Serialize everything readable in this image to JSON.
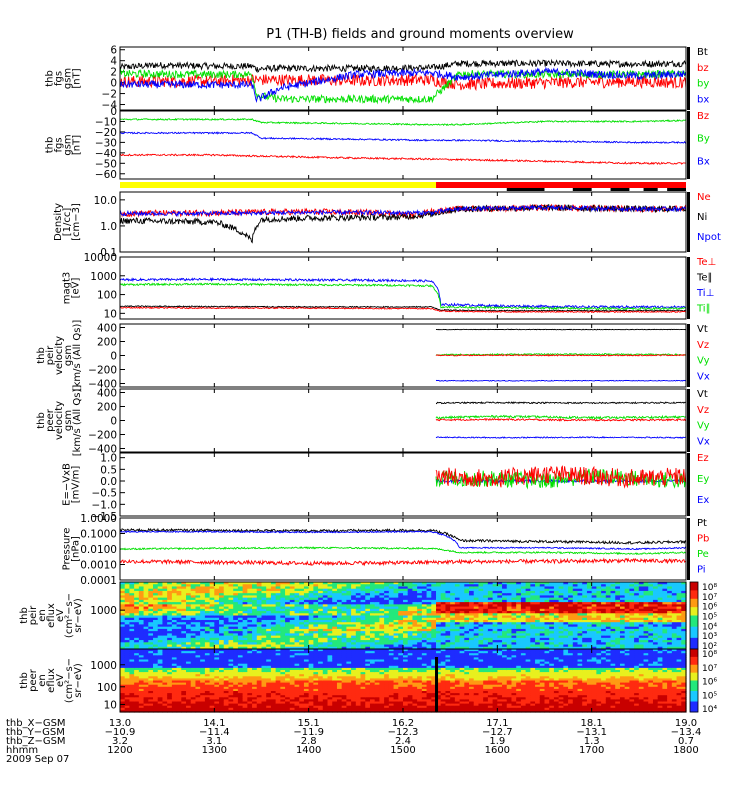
{
  "title": "P1 (TH-B) fields and ground moments overview",
  "colors": {
    "black": "#000000",
    "red": "#ff0000",
    "green": "#00e000",
    "blue": "#0000ff",
    "yellow": "#ffff00"
  },
  "chart_data": [
    {
      "type": "line",
      "id": "fgs_gsm_mag",
      "ylabel": [
        "thb",
        "fgs",
        "gsm",
        "[nT]"
      ],
      "yticks": [
        "6",
        "4",
        "2",
        "0",
        "−2",
        "−4"
      ],
      "ylim": [
        -5,
        6.5
      ],
      "legend": [
        {
          "label": "Bt",
          "color": "black"
        },
        {
          "label": "bz",
          "color": "red"
        },
        {
          "label": "by",
          "color": "green"
        },
        {
          "label": "bx",
          "color": "blue"
        }
      ],
      "series": [
        {
          "name": "Bt",
          "color": "black",
          "x": [
            13.0,
            13.4,
            14.0,
            14.4,
            14.45,
            14.6,
            15.5,
            16.3,
            16.6,
            17.5,
            18.5,
            19.0
          ],
          "y": [
            2.8,
            3.2,
            3.0,
            3.0,
            2.5,
            2.6,
            2.6,
            2.7,
            3.5,
            3.5,
            3.4,
            3.5
          ],
          "noise": 0.6
        },
        {
          "name": "bz",
          "color": "red",
          "x": [
            13.0,
            14.0,
            14.4,
            14.6,
            15.5,
            16.3,
            16.6,
            17.5,
            18.5,
            19.0
          ],
          "y": [
            0.2,
            0.3,
            0.5,
            0.5,
            0.4,
            0.5,
            -0.3,
            0.0,
            0.2,
            0.0
          ],
          "noise": 1.1
        },
        {
          "name": "by",
          "color": "green",
          "x": [
            13.0,
            14.0,
            14.4,
            14.45,
            14.7,
            15.5,
            16.3,
            16.6,
            17.5,
            18.5,
            19.0
          ],
          "y": [
            1.6,
            1.5,
            1.5,
            -2.3,
            -3.0,
            -3.0,
            -3.0,
            1.6,
            1.5,
            1.5,
            1.6
          ],
          "noise": 0.7
        },
        {
          "name": "bx",
          "color": "blue",
          "x": [
            13.0,
            14.0,
            14.4,
            14.45,
            14.7,
            15.5,
            16.3,
            16.6,
            17.5,
            18.5,
            19.0
          ],
          "y": [
            -0.3,
            -0.4,
            -0.4,
            -3.2,
            -1.0,
            1.5,
            1.8,
            1.0,
            2.0,
            1.2,
            1.6
          ],
          "noise": 0.7
        }
      ]
    },
    {
      "type": "line",
      "id": "fgs_gsm_vec",
      "ylabel": [
        "thb",
        "fgs",
        "gsm",
        "[nT]"
      ],
      "yticks": [
        "0",
        "−10",
        "−20",
        "−30",
        "−40",
        "−50",
        "−60"
      ],
      "ylim": [
        -65,
        0
      ],
      "legend": [
        {
          "label": "Bz",
          "color": "red"
        },
        {
          "label": "By",
          "color": "green"
        },
        {
          "label": "Bx",
          "color": "blue"
        }
      ],
      "series": [
        {
          "name": "Bz",
          "color": "red",
          "x": [
            13.0,
            14.0,
            14.4,
            15.5,
            16.3,
            17.5,
            18.5,
            19.0
          ],
          "y": [
            -42,
            -42,
            -43,
            -45,
            -46,
            -48,
            -50,
            -50
          ],
          "noise": 0.8
        },
        {
          "name": "By",
          "color": "green",
          "x": [
            13.0,
            14.0,
            14.4,
            14.5,
            15.5,
            16.3,
            16.6,
            17.5,
            18.5,
            19.0
          ],
          "y": [
            -8,
            -8,
            -8,
            -11,
            -12,
            -13,
            -13,
            -10,
            -10,
            -9
          ],
          "noise": 0.7
        },
        {
          "name": "Bx",
          "color": "blue",
          "x": [
            13.0,
            14.0,
            14.4,
            14.5,
            15.5,
            16.3,
            16.6,
            17.5,
            18.5,
            19.0
          ],
          "y": [
            -21,
            -21,
            -21,
            -26,
            -27,
            -28,
            -28,
            -29,
            -30,
            -30
          ],
          "noise": 0.7
        }
      ]
    },
    {
      "type": "line",
      "id": "density",
      "log": true,
      "ylabel": [
        "Density",
        "[1/cc]",
        "[cm−3]"
      ],
      "yticks": [
        "10.0",
        "1.0",
        "0.1"
      ],
      "ylim": [
        0.1,
        20
      ],
      "legend": [
        {
          "label": "Ne",
          "color": "red"
        },
        {
          "label": "Ni",
          "color": "black"
        },
        {
          "label": "Npot",
          "color": "blue"
        }
      ],
      "series": [
        {
          "name": "Ne",
          "color": "red",
          "x": [
            13.0,
            14.0,
            15.0,
            15.8,
            16.1,
            16.3,
            16.6,
            17.5,
            18.5,
            19.0
          ],
          "y": [
            3.0,
            3.2,
            3.5,
            3.2,
            2.5,
            3.5,
            4.5,
            5.0,
            4.5,
            4.5
          ],
          "noise": 0.12
        },
        {
          "name": "Ni",
          "color": "black",
          "x": [
            13.0,
            13.5,
            14.0,
            14.4,
            14.5,
            15.0,
            16.0,
            16.3,
            16.6,
            17.5,
            18.5,
            19.0
          ],
          "y": [
            1.6,
            1.5,
            1.4,
            0.25,
            1.8,
            2.0,
            2.2,
            2.8,
            4.5,
            5.0,
            4.5,
            4.5
          ],
          "noise": 0.12
        },
        {
          "name": "Npot",
          "color": "blue",
          "x": [
            13.0,
            14.0,
            15.0,
            16.0,
            16.3,
            16.6,
            17.5,
            18.5,
            19.0
          ],
          "y": [
            3.0,
            3.0,
            3.3,
            3.2,
            3.2,
            4.5,
            5.0,
            4.5,
            4.5
          ],
          "noise": 0.08
        }
      ]
    },
    {
      "type": "line",
      "id": "temperature",
      "log": true,
      "ylabel": [
        "magt3",
        "[eV]"
      ],
      "yticks": [
        "10000",
        "1000",
        "100",
        "10"
      ],
      "ylim": [
        5,
        10000
      ],
      "legend": [
        {
          "label": "Te⊥",
          "color": "red"
        },
        {
          "label": "Te∥",
          "color": "black"
        },
        {
          "label": "Ti⊥",
          "color": "blue"
        },
        {
          "label": "Ti∥",
          "color": "green"
        }
      ],
      "series": [
        {
          "name": "Ti⊥",
          "color": "blue",
          "x": [
            13.0,
            14.0,
            15.0,
            16.0,
            16.3,
            16.4,
            17.0,
            18.0,
            19.0
          ],
          "y": [
            620,
            640,
            600,
            560,
            520,
            30,
            25,
            22,
            22
          ],
          "noise": 0.06
        },
        {
          "name": "Ti∥",
          "color": "green",
          "x": [
            13.0,
            14.0,
            15.0,
            16.0,
            16.3,
            16.4,
            17.0,
            18.0,
            19.0
          ],
          "y": [
            340,
            360,
            330,
            310,
            290,
            22,
            20,
            18,
            18
          ],
          "noise": 0.05
        },
        {
          "name": "Te∥",
          "color": "black",
          "x": [
            13.0,
            14.0,
            15.0,
            16.0,
            16.3,
            16.4,
            17.0,
            18.0,
            19.0
          ],
          "y": [
            24,
            23,
            22,
            22,
            22,
            15,
            14,
            14,
            14
          ],
          "noise": 0.03
        },
        {
          "name": "Te⊥",
          "color": "red",
          "x": [
            13.0,
            14.0,
            15.0,
            16.0,
            16.3,
            16.4,
            17.0,
            18.0,
            19.0
          ],
          "y": [
            20,
            19,
            19,
            18,
            18,
            13,
            12,
            12,
            12
          ],
          "noise": 0.03
        }
      ]
    },
    {
      "type": "line",
      "id": "peir_velocity",
      "ylabel": [
        "thb",
        "peir",
        "velocity",
        "gsm",
        "[km/s (All Qs)]"
      ],
      "yticks": [
        "400",
        "200",
        "0",
        "−200",
        "−400"
      ],
      "ylim": [
        -450,
        450
      ],
      "legend": [
        {
          "label": "Vt",
          "color": "black"
        },
        {
          "label": "Vz",
          "color": "red"
        },
        {
          "label": "Vy",
          "color": "green"
        },
        {
          "label": "Vx",
          "color": "blue"
        }
      ],
      "series": [
        {
          "name": "Vt",
          "color": "black",
          "x": [
            16.35,
            17.0,
            18.0,
            19.0
          ],
          "y": [
            370,
            372,
            370,
            372
          ],
          "noise": 4
        },
        {
          "name": "Vy",
          "color": "green",
          "x": [
            16.35,
            17.0,
            18.0,
            19.0
          ],
          "y": [
            10,
            15,
            20,
            10
          ],
          "noise": 10
        },
        {
          "name": "Vz",
          "color": "red",
          "x": [
            16.35,
            17.0,
            18.0,
            19.0
          ],
          "y": [
            0,
            5,
            0,
            5
          ],
          "noise": 8
        },
        {
          "name": "Vx",
          "color": "blue",
          "x": [
            16.35,
            17.0,
            18.0,
            19.0
          ],
          "y": [
            -360,
            -362,
            -360,
            -360
          ],
          "noise": 5
        }
      ]
    },
    {
      "type": "line",
      "id": "peer_velocity",
      "ylabel": [
        "thb",
        "peer",
        "velocity",
        "gsm",
        "[km/s (All Qs)]"
      ],
      "yticks": [
        "400",
        "200",
        "0",
        "−200",
        "−400"
      ],
      "ylim": [
        -450,
        450
      ],
      "legend": [
        {
          "label": "Vt",
          "color": "black"
        },
        {
          "label": "Vz",
          "color": "red"
        },
        {
          "label": "Vy",
          "color": "green"
        },
        {
          "label": "Vx",
          "color": "blue"
        }
      ],
      "series": [
        {
          "name": "Vt",
          "color": "black",
          "x": [
            16.35,
            17.0,
            18.0,
            19.0
          ],
          "y": [
            250,
            255,
            250,
            255
          ],
          "noise": 10
        },
        {
          "name": "Vy",
          "color": "green",
          "x": [
            16.35,
            17.0,
            18.0,
            19.0
          ],
          "y": [
            40,
            60,
            40,
            50
          ],
          "noise": 15
        },
        {
          "name": "Vz",
          "color": "red",
          "x": [
            16.35,
            17.0,
            18.0,
            19.0
          ],
          "y": [
            10,
            15,
            5,
            10
          ],
          "noise": 12
        },
        {
          "name": "Vx",
          "color": "blue",
          "x": [
            16.35,
            17.0,
            18.0,
            19.0
          ],
          "y": [
            -240,
            -245,
            -240,
            -245
          ],
          "noise": 8
        }
      ]
    },
    {
      "type": "line",
      "id": "efield",
      "ylabel": [
        "E=−VxB",
        "[mV/m]"
      ],
      "yticks": [
        "1.0",
        "0.5",
        "0.0",
        "−0.5",
        "−1.0",
        "−1.5"
      ],
      "ylim": [
        -1.5,
        1.2
      ],
      "legend": [
        {
          "label": "Ez",
          "color": "red"
        },
        {
          "label": "Ey",
          "color": "green"
        },
        {
          "label": "Ex",
          "color": "blue"
        }
      ],
      "series": [
        {
          "name": "Ex",
          "color": "blue",
          "x": [
            16.35,
            17.0,
            17.5,
            18.0,
            18.5,
            19.0
          ],
          "y": [
            0.0,
            0.0,
            0.0,
            0.0,
            0.0,
            0.0
          ],
          "noise": 0.06
        },
        {
          "name": "Ey",
          "color": "green",
          "x": [
            16.35,
            17.0,
            17.5,
            18.0,
            18.5,
            19.0
          ],
          "y": [
            0.1,
            0.1,
            0.0,
            0.2,
            0.1,
            0.0
          ],
          "noise": 0.35
        },
        {
          "name": "Ez",
          "color": "red",
          "x": [
            16.35,
            17.0,
            17.5,
            18.0,
            18.5,
            19.0
          ],
          "y": [
            0.2,
            0.1,
            0.3,
            0.2,
            0.1,
            0.2
          ],
          "noise": 0.4
        }
      ]
    },
    {
      "type": "line",
      "id": "pressure",
      "log": true,
      "ylabel": [
        "Pressure",
        "[nPa]"
      ],
      "yticks": [
        "1.0000",
        "0.1000",
        "0.0100",
        "0.0010",
        "0.0001"
      ],
      "ylim": [
        0.0001,
        1.0
      ],
      "legend": [
        {
          "label": "Pt",
          "color": "black"
        },
        {
          "label": "Pb",
          "color": "red"
        },
        {
          "label": "Pe",
          "color": "green"
        },
        {
          "label": "Pi",
          "color": "blue"
        }
      ],
      "series": [
        {
          "name": "Pt",
          "color": "black",
          "x": [
            13.0,
            14.0,
            15.0,
            16.0,
            16.3,
            16.6,
            17.5,
            18.5,
            19.0
          ],
          "y": [
            0.17,
            0.16,
            0.15,
            0.16,
            0.16,
            0.035,
            0.03,
            0.025,
            0.03
          ],
          "noise": 0.08
        },
        {
          "name": "Pi",
          "color": "blue",
          "x": [
            13.0,
            14.0,
            15.0,
            16.0,
            16.3,
            16.6,
            17.5,
            18.5,
            19.0
          ],
          "y": [
            0.13,
            0.13,
            0.12,
            0.13,
            0.13,
            0.012,
            0.012,
            0.01,
            0.012
          ],
          "noise": 0.04
        },
        {
          "name": "Pe",
          "color": "green",
          "x": [
            13.0,
            14.0,
            15.0,
            16.0,
            16.3,
            16.6,
            17.5,
            18.5,
            19.0
          ],
          "y": [
            0.01,
            0.011,
            0.012,
            0.011,
            0.011,
            0.006,
            0.006,
            0.005,
            0.006
          ],
          "noise": 0.05
        },
        {
          "name": "Pb",
          "color": "red",
          "x": [
            13.0,
            14.0,
            15.0,
            16.0,
            16.3,
            16.6,
            17.5,
            18.5,
            19.0
          ],
          "y": [
            0.0016,
            0.0014,
            0.0012,
            0.0013,
            0.0014,
            0.0015,
            0.0016,
            0.0018,
            0.0016
          ],
          "noise": 0.12
        }
      ]
    },
    {
      "type": "heatmap",
      "id": "peir_en_eflux",
      "ylabel": [
        "thb",
        "peir",
        "en",
        "eflux",
        "eV",
        "(cm²−s−",
        "sr−eV)"
      ],
      "yticks": [
        "1000"
      ],
      "colorbar": {
        "labels": [
          "10⁸",
          "10⁷",
          "10⁶",
          "10⁵",
          "10⁴",
          "10³",
          "10²"
        ]
      }
    },
    {
      "type": "heatmap",
      "id": "peer_en_eflux",
      "ylabel": [
        "thb",
        "peer",
        "en",
        "eflux",
        "eV",
        "(cm²−s−",
        "sr−eV)"
      ],
      "yticks": [
        "1000",
        "100",
        "10"
      ],
      "colorbar": {
        "labels": [
          "10⁸",
          "10⁷",
          "10⁶",
          "10⁵",
          "10⁴"
        ]
      }
    }
  ],
  "status_bar": {
    "yellow_until": 16.35,
    "red_from": 16.35,
    "black_segments": [
      [
        17.1,
        17.5
      ],
      [
        17.8,
        18.0
      ],
      [
        18.2,
        18.4
      ],
      [
        18.55,
        18.7
      ],
      [
        18.8,
        19.0
      ]
    ]
  },
  "time_axis": {
    "xlim": [
      13.0,
      19.0
    ],
    "rows": [
      {
        "label": "thb_X−GSM",
        "values": [
          "13.0",
          "14.1",
          "15.1",
          "16.2",
          "17.1",
          "18.1",
          "19.0"
        ]
      },
      {
        "label": "thb_Y−GSM",
        "values": [
          "−10.9",
          "−11.4",
          "−11.9",
          "−12.3",
          "−12.7",
          "−13.1",
          "−13.4"
        ]
      },
      {
        "label": "thb_Z−GSM",
        "values": [
          "3.2",
          "3.1",
          "2.8",
          "2.4",
          "1.9",
          "1.3",
          "0.7"
        ]
      },
      {
        "label": "hhmm",
        "values": [
          "1200",
          "1300",
          "1400",
          "1500",
          "1600",
          "1700",
          "1800"
        ]
      }
    ],
    "date": "2009 Sep 07"
  }
}
